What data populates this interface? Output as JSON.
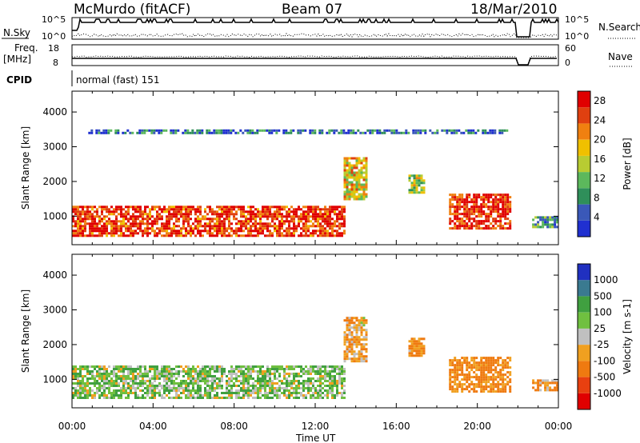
{
  "header": {
    "title": "McMurdo (fitACF)",
    "beam": "Beam 07",
    "date": "18/Mar/2010"
  },
  "labels": {
    "nsky": "N.Sky",
    "nsearch": "N.Search",
    "freq": "Freq.",
    "freq_unit": "[MHz]",
    "nave": "Nave",
    "cpid": "CPID",
    "cpid_value": "normal (fast) 151",
    "xlabel": "Time UT",
    "ylabel": "Slant Range [km]",
    "noise_left_ticks": [
      "10^5",
      "10^0"
    ],
    "noise_right_ticks": [
      "10^5",
      "10^0"
    ],
    "freq_ticks": [
      "18",
      "8"
    ],
    "nave_ticks": [
      "60",
      "0"
    ]
  },
  "colors": {
    "power_scale": [
      "#2030d0",
      "#3a58b8",
      "#2f8f5a",
      "#5cb85c",
      "#b8cc32",
      "#f0c000",
      "#f08010",
      "#e04010",
      "#e00000"
    ],
    "velocity_scale": [
      "#e00000",
      "#e84010",
      "#ef7a10",
      "#f0a020",
      "#c0c0c0",
      "#70c040",
      "#40a040",
      "#3a7a90",
      "#2030c0"
    ]
  },
  "chart_data": [
    {
      "type": "heatmap",
      "name": "power",
      "xlabel": "Time UT",
      "ylabel": "Slant Range [km]",
      "xlim": [
        0,
        24
      ],
      "ylim": [
        180,
        4600
      ],
      "xticks": [
        "00:00",
        "04:00",
        "08:00",
        "12:00",
        "16:00",
        "20:00",
        "00:00"
      ],
      "yticks": [
        1000,
        2000,
        3000,
        4000
      ],
      "colorbar": {
        "label": "Power [dB]",
        "ticks": [
          "4",
          "8",
          "12",
          "16",
          "20",
          "24",
          "28"
        ],
        "range": [
          0,
          30
        ]
      },
      "echo_regions": [
        {
          "t0": 0.0,
          "t1": 13.4,
          "r0": 450,
          "r1": 1300,
          "level": 26
        },
        {
          "t0": 13.4,
          "t1": 14.5,
          "r0": 1500,
          "r1": 2700,
          "level": 18
        },
        {
          "t0": 16.6,
          "t1": 17.4,
          "r0": 1700,
          "r1": 2200,
          "level": 14
        },
        {
          "t0": 18.6,
          "t1": 21.6,
          "r0": 650,
          "r1": 1650,
          "level": 27
        },
        {
          "t0": 22.7,
          "t1": 24.0,
          "r0": 700,
          "r1": 1000,
          "level": 10
        },
        {
          "t0": 0.8,
          "t1": 21.5,
          "r0": 3400,
          "r1": 3500,
          "level": 6
        }
      ]
    },
    {
      "type": "heatmap",
      "name": "velocity",
      "xlabel": "Time UT",
      "ylabel": "Slant Range [km]",
      "xlim": [
        0,
        24
      ],
      "ylim": [
        180,
        4600
      ],
      "xticks": [
        "00:00",
        "04:00",
        "08:00",
        "12:00",
        "16:00",
        "20:00",
        "00:00"
      ],
      "yticks": [
        1000,
        2000,
        3000,
        4000
      ],
      "colorbar": {
        "label": "Velocity [m s-1]",
        "ticks": [
          "1000",
          "500",
          "100",
          "25",
          "-25",
          "-100",
          "-500",
          "-1000"
        ]
      },
      "echo_regions": [
        {
          "t0": 0.0,
          "t1": 13.4,
          "r0": 450,
          "r1": 1400,
          "level": 60
        },
        {
          "t0": 13.4,
          "t1": 14.5,
          "r0": 1500,
          "r1": 2800,
          "level": -80
        },
        {
          "t0": 16.6,
          "t1": 17.4,
          "r0": 1700,
          "r1": 2200,
          "level": -120
        },
        {
          "t0": 18.6,
          "t1": 21.6,
          "r0": 650,
          "r1": 1650,
          "level": -150
        },
        {
          "t0": 22.7,
          "t1": 24.0,
          "r0": 700,
          "r1": 1000,
          "level": -100
        }
      ]
    }
  ]
}
